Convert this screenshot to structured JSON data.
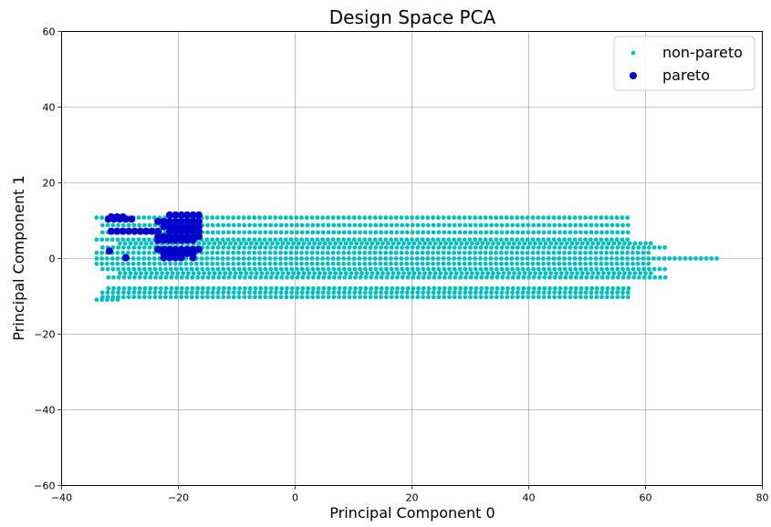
{
  "chart_data": {
    "type": "scatter",
    "title": "Design Space PCA",
    "xlabel": "Principal Component 0",
    "ylabel": "Principal Component 1",
    "xlim": [
      -40,
      80
    ],
    "ylim": [
      -60,
      60
    ],
    "xticks": [
      -40,
      -20,
      0,
      20,
      40,
      60,
      80
    ],
    "yticks": [
      -60,
      -40,
      -20,
      0,
      20,
      40,
      60
    ],
    "xtick_labels": [
      "−40",
      "−20",
      "0",
      "20",
      "40",
      "60",
      "80"
    ],
    "ytick_labels": [
      "−60",
      "−40",
      "−20",
      "0",
      "20",
      "40",
      "60"
    ],
    "grid": true,
    "legend_position": "top-right",
    "series": [
      {
        "name": "non-pareto",
        "color": "#00BFBF",
        "marker_size": "small",
        "bands": [
          {
            "y": 10.8,
            "x_min": -34,
            "x_max": 57.5,
            "step": 0.9
          },
          {
            "y": 8.8,
            "x_min": -33,
            "x_max": 57.5,
            "step": 0.9
          },
          {
            "y": 6.9,
            "x_min": -33,
            "x_max": 57.5,
            "step": 0.9
          },
          {
            "y": 5.0,
            "x_min": -34,
            "x_max": 57.5,
            "step": 0.9
          },
          {
            "y": 4.0,
            "x_min": -30,
            "x_max": 61.0,
            "step": 0.9
          },
          {
            "y": 2.9,
            "x_min": -33,
            "x_max": 64.0,
            "step": 0.9
          },
          {
            "y": 1.5,
            "x_min": -34,
            "x_max": 61.0,
            "step": 0.9
          },
          {
            "y": 0.0,
            "x_min": -34,
            "x_max": 72.5,
            "step": 0.9
          },
          {
            "y": -1.4,
            "x_min": -34,
            "x_max": 61.0,
            "step": 0.9
          },
          {
            "y": -2.8,
            "x_min": -33,
            "x_max": 64.0,
            "step": 0.9
          },
          {
            "y": -3.9,
            "x_min": -30,
            "x_max": 61.0,
            "step": 0.9
          },
          {
            "y": -5.0,
            "x_min": -32,
            "x_max": 64.0,
            "step": 0.9
          },
          {
            "y": -7.9,
            "x_min": -32,
            "x_max": 57.5,
            "step": 0.9
          },
          {
            "y": -9.0,
            "x_min": -33,
            "x_max": 57.5,
            "step": 0.9
          },
          {
            "y": -10.2,
            "x_min": -33,
            "x_max": 57.5,
            "step": 0.9
          },
          {
            "y": -10.9,
            "x_min": -34,
            "x_max": -30,
            "step": 0.9
          }
        ]
      },
      {
        "name": "pareto",
        "color": "#0000CC",
        "marker_size": "large",
        "points": [
          [
            -32.0,
            10.4
          ],
          [
            -31.0,
            10.4
          ],
          [
            -30.0,
            10.4
          ],
          [
            -29.0,
            10.4
          ],
          [
            -28.0,
            10.4
          ],
          [
            -31.5,
            11.0
          ],
          [
            -30.5,
            11.0
          ],
          [
            -29.5,
            11.0
          ],
          [
            -31.5,
            7.2
          ],
          [
            -30.5,
            7.2
          ],
          [
            -29.5,
            7.2
          ],
          [
            -28.5,
            7.2
          ],
          [
            -27.5,
            7.2
          ],
          [
            -26.5,
            7.2
          ],
          [
            -25.5,
            7.2
          ],
          [
            -24.5,
            7.2
          ],
          [
            -23.5,
            7.2
          ],
          [
            -21.5,
            11.5
          ],
          [
            -20.5,
            11.5
          ],
          [
            -19.5,
            11.5
          ],
          [
            -18.5,
            11.5
          ],
          [
            -17.5,
            11.5
          ],
          [
            -16.5,
            11.5
          ],
          [
            -23.5,
            9.8
          ],
          [
            -22.5,
            9.8
          ],
          [
            -21.5,
            9.8
          ],
          [
            -20.5,
            9.8
          ],
          [
            -19.5,
            9.8
          ],
          [
            -18.5,
            9.8
          ],
          [
            -17.5,
            9.8
          ],
          [
            -16.5,
            9.8
          ],
          [
            -22.5,
            8.4
          ],
          [
            -21.5,
            8.4
          ],
          [
            -20.5,
            8.4
          ],
          [
            -19.5,
            8.4
          ],
          [
            -18.5,
            8.4
          ],
          [
            -17.5,
            8.4
          ],
          [
            -16.5,
            8.4
          ],
          [
            -21.5,
            7.2
          ],
          [
            -20.5,
            7.2
          ],
          [
            -19.5,
            7.2
          ],
          [
            -18.5,
            7.2
          ],
          [
            -17.5,
            7.2
          ],
          [
            -16.5,
            7.2
          ],
          [
            -23.5,
            5.8
          ],
          [
            -22.5,
            5.8
          ],
          [
            -21.5,
            5.8
          ],
          [
            -20.5,
            5.8
          ],
          [
            -19.5,
            5.8
          ],
          [
            -18.5,
            5.8
          ],
          [
            -17.5,
            5.8
          ],
          [
            -16.5,
            5.8
          ],
          [
            -23.5,
            4.8
          ],
          [
            -22.5,
            4.8
          ],
          [
            -21.5,
            4.8
          ],
          [
            -20.5,
            4.8
          ],
          [
            -19.5,
            4.8
          ],
          [
            -18.5,
            4.8
          ],
          [
            -17.5,
            4.8
          ],
          [
            -23.5,
            2.4
          ],
          [
            -22.5,
            2.4
          ],
          [
            -21.5,
            2.4
          ],
          [
            -20.5,
            2.4
          ],
          [
            -19.5,
            2.4
          ],
          [
            -18.5,
            2.4
          ],
          [
            -17.5,
            2.4
          ],
          [
            -16.5,
            2.4
          ],
          [
            -22.5,
            1.3
          ],
          [
            -21.5,
            1.3
          ],
          [
            -20.5,
            1.3
          ],
          [
            -19.5,
            1.3
          ],
          [
            -18.5,
            1.3
          ],
          [
            -17.5,
            1.3
          ],
          [
            -22.5,
            0.2
          ],
          [
            -21.5,
            0.2
          ],
          [
            -20.5,
            0.2
          ],
          [
            -19.5,
            0.2
          ],
          [
            -17.5,
            0.2
          ],
          [
            -31.8,
            2.0
          ],
          [
            -29.0,
            0.2
          ]
        ]
      }
    ]
  }
}
